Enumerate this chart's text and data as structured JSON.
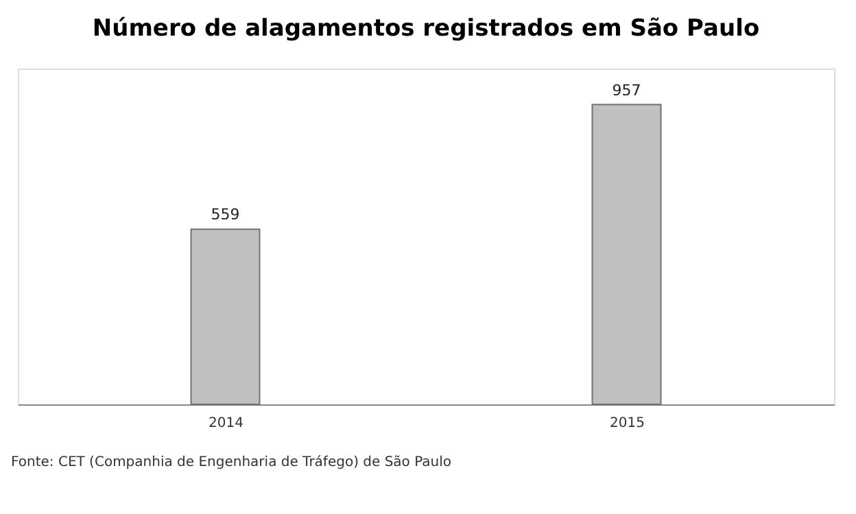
{
  "chart_data": {
    "type": "bar",
    "title": "Número de alagamentos registrados em São Paulo",
    "categories": [
      "2014",
      "2015"
    ],
    "values": [
      559,
      957
    ],
    "color": "#c0c0c0",
    "data_labels": true,
    "annotations": [
      "Fonte: CET (Companhia de Engenharia de Tráfego) de São Paulo"
    ]
  }
}
